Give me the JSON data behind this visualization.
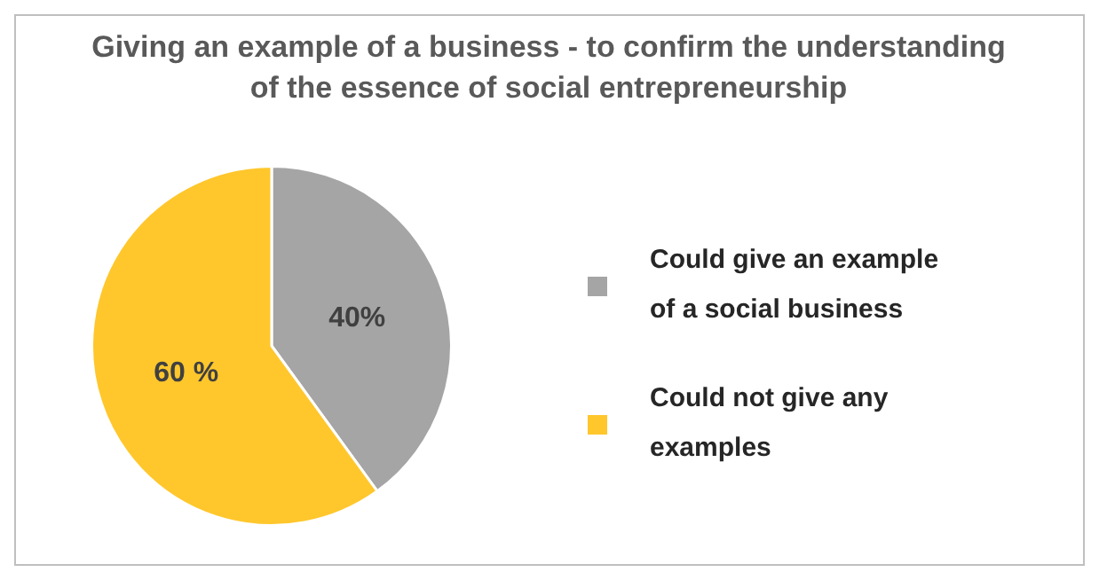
{
  "chart_data": {
    "type": "pie",
    "title": "Giving an example of a business - to confirm the understanding of the essence of social entrepreneurship",
    "categories": [
      "Could give an example of a social business",
      "Could not give any examples"
    ],
    "values": [
      40,
      60
    ],
    "colors": [
      "#a5a5a5",
      "#ffc72c"
    ],
    "value_labels": [
      "40%",
      "60 %"
    ],
    "legend": "right"
  }
}
